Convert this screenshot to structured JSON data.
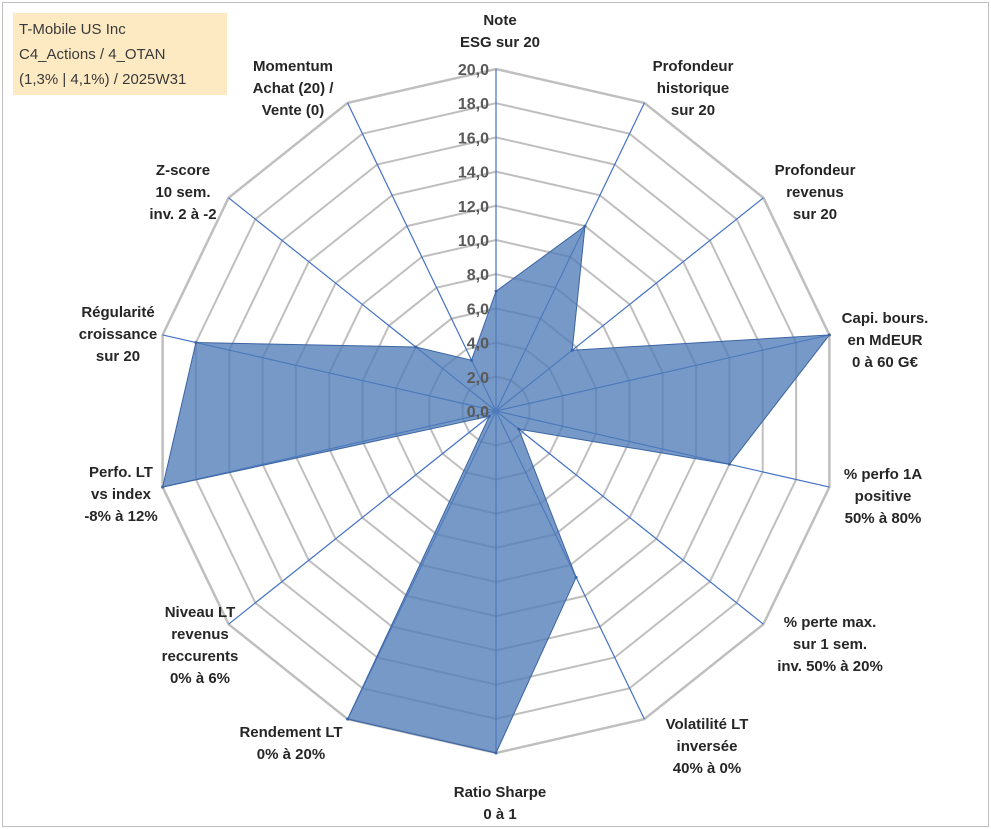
{
  "title_box": {
    "line1": "T-Mobile US Inc",
    "line2": "C4_Actions / 4_OTAN",
    "line3": "(1,3% | 4,1%) / 2025W31"
  },
  "colors": {
    "grid": "#bfbfbf",
    "spoke": "#4472c4",
    "fill": "#4f7cb8",
    "title_bg": "#fde9c2"
  },
  "chart_data": {
    "type": "radar",
    "title": "",
    "rmin": 0,
    "rmax": 20,
    "ticks": [
      "0,0",
      "2,0",
      "4,0",
      "6,0",
      "8,0",
      "10,0",
      "12,0",
      "14,0",
      "16,0",
      "18,0",
      "20,0"
    ],
    "axes": [
      [
        "Note",
        "ESG sur 20"
      ],
      [
        "Profondeur",
        "historique",
        "sur 20"
      ],
      [
        "Profondeur",
        "revenus",
        "sur 20"
      ],
      [
        "Capi. bours.",
        "en MdEUR",
        "0 à 60 G€"
      ],
      [
        "% perfo 1A",
        "positive",
        "50% à 80%"
      ],
      [
        "% perte max.",
        "sur 1 sem.",
        "inv. 50% à 20%"
      ],
      [
        "Volatilité LT",
        "inversée",
        "40% à 0%"
      ],
      [
        "Ratio Sharpe",
        "0 à 1"
      ],
      [
        "Rendement LT",
        "0% à 20%"
      ],
      [
        "Niveau LT",
        "revenus",
        "reccurents",
        "0% à 6%"
      ],
      [
        "Perfo. LT",
        "vs index",
        "-8% à 12%"
      ],
      [
        "Régularité",
        "croissance",
        "sur 20"
      ],
      [
        "Z-score",
        "10 sem.",
        "inv. 2 à -2"
      ],
      [
        "Momentum",
        "Achat (20) /",
        "Vente (0)"
      ]
    ],
    "series": [
      {
        "values": [
          7.0,
          12.0,
          5.7,
          20.0,
          14.0,
          1.7,
          10.8,
          20.0,
          20.0,
          0.5,
          20.0,
          18.0,
          6.0,
          3.3
        ]
      }
    ]
  }
}
